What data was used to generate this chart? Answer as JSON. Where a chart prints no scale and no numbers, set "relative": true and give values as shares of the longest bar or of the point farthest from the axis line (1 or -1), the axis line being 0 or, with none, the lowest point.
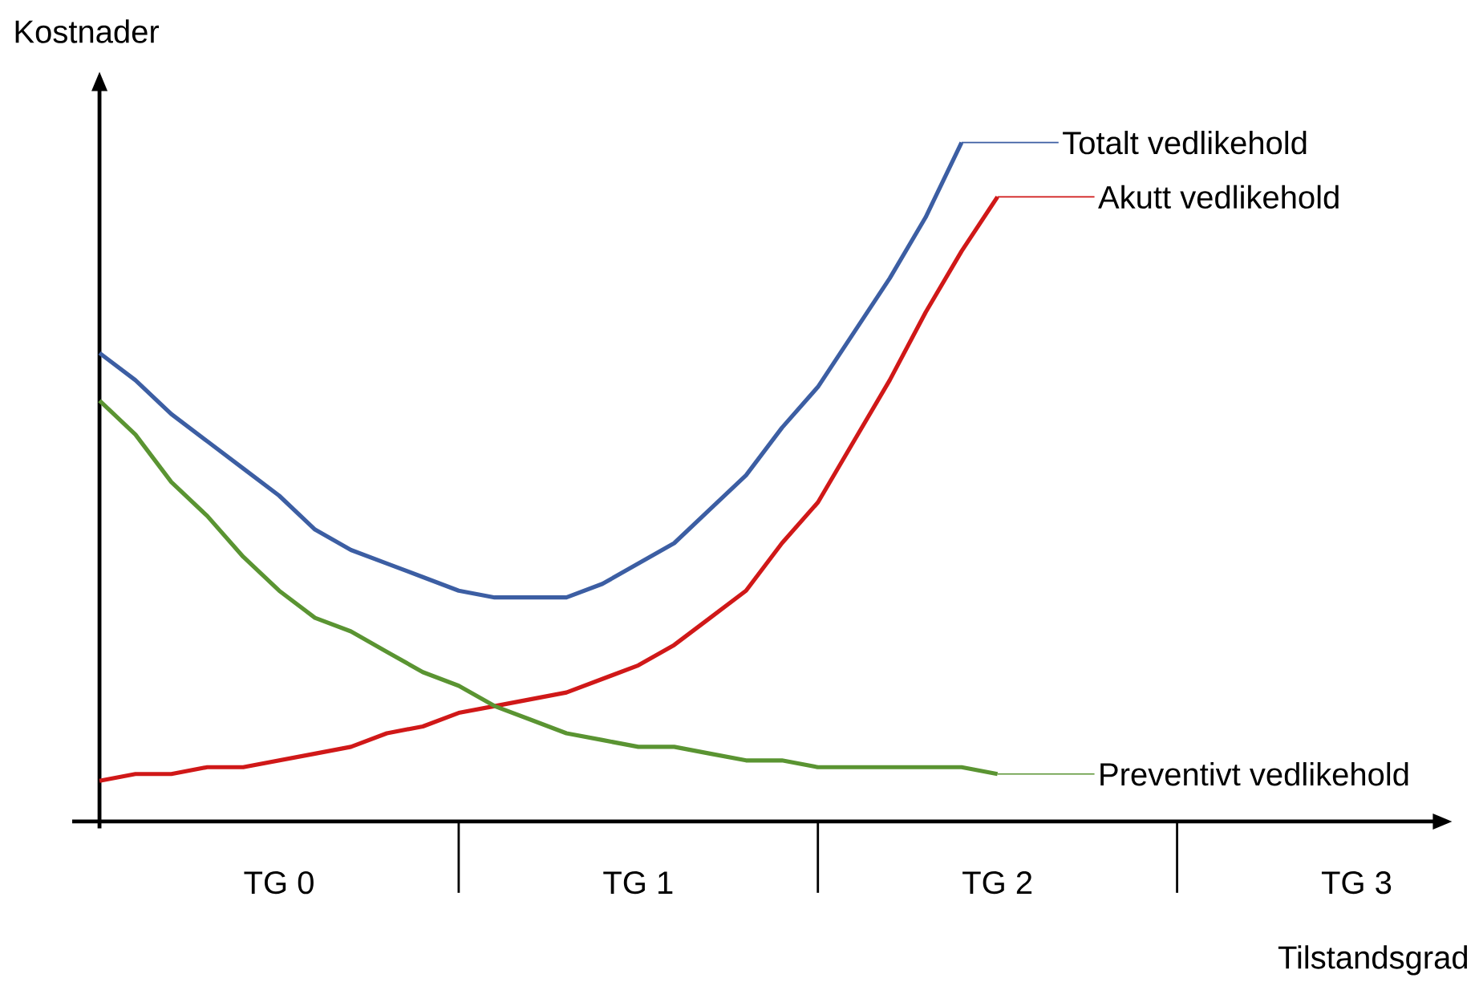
{
  "chart_data": {
    "type": "line",
    "relative": true,
    "ylabel": "Kostnader",
    "legend": "right",
    "categories": [
      null,
      null,
      null,
      null,
      null,
      null,
      null,
      null,
      null,
      null,
      null,
      null,
      null,
      null,
      null,
      null,
      null,
      null,
      null,
      null,
      null,
      null,
      null,
      null,
      null,
      null
    ],
    "annotations": [
      "TG 0",
      "TG 1",
      "TG 2",
      "TG 3",
      "Tilstandsgrad"
    ],
    "series": [
      {
        "name": "Totalt vedlikehold",
        "color": "#3c5ea3",
        "values": [
          0.69,
          0.65,
          0.6,
          0.56,
          0.52,
          0.48,
          0.43,
          0.4,
          0.38,
          0.36,
          0.34,
          0.33,
          0.33,
          0.33,
          0.35,
          0.38,
          0.41,
          0.46,
          0.51,
          0.58,
          0.64,
          0.72,
          0.8,
          0.89,
          1.0,
          null
        ]
      },
      {
        "name": "Akutt vedlikehold",
        "color": "#d01818",
        "values": [
          0.06,
          0.07,
          0.07,
          0.08,
          0.08,
          0.09,
          0.1,
          0.11,
          0.13,
          0.14,
          0.16,
          0.17,
          0.18,
          0.19,
          0.21,
          0.23,
          0.26,
          0.3,
          0.34,
          0.41,
          0.47,
          0.56,
          0.65,
          0.75,
          0.84,
          0.92
        ]
      },
      {
        "name": "Preventivt vedlikehold",
        "color": "#5a9432",
        "values": [
          0.62,
          0.57,
          0.5,
          0.45,
          0.39,
          0.34,
          0.3,
          0.28,
          0.25,
          0.22,
          0.2,
          0.17,
          0.15,
          0.13,
          0.12,
          0.11,
          0.11,
          0.1,
          0.09,
          0.09,
          0.08,
          0.08,
          0.08,
          0.08,
          0.08,
          0.07
        ]
      }
    ],
    "line_style": "solid",
    "marker": "none"
  }
}
